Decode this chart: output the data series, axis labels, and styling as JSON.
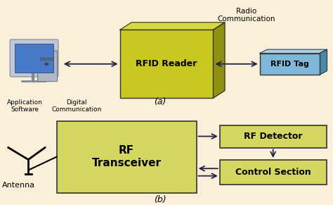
{
  "bg_color": "#faefd8",
  "olive_front": "#c8c820",
  "olive_side": "#909010",
  "olive_top": "#d8d840",
  "olive_light": "#d4d860",
  "blue_front": "#7eb8d8",
  "blue_side": "#4888a8",
  "blue_top": "#a8d0e8",
  "label_a": "(a)",
  "label_b": "(b)",
  "rfid_reader_label": "RFID Reader",
  "rfid_tag_label": "RFID Tag",
  "radio_comm_label": "Radio\nCommunication",
  "app_software_label": "Application\nSoftware",
  "digital_comm_label": "Digital\nCommunication",
  "rf_transceiver_label": "RF\nTransceiver",
  "rf_detector_label": "RF Detector",
  "control_section_label": "Control Section",
  "antenna_label": "Antenna",
  "arrow_color": "#222244",
  "box_edge_color": "#333333",
  "text_color": "#000000"
}
